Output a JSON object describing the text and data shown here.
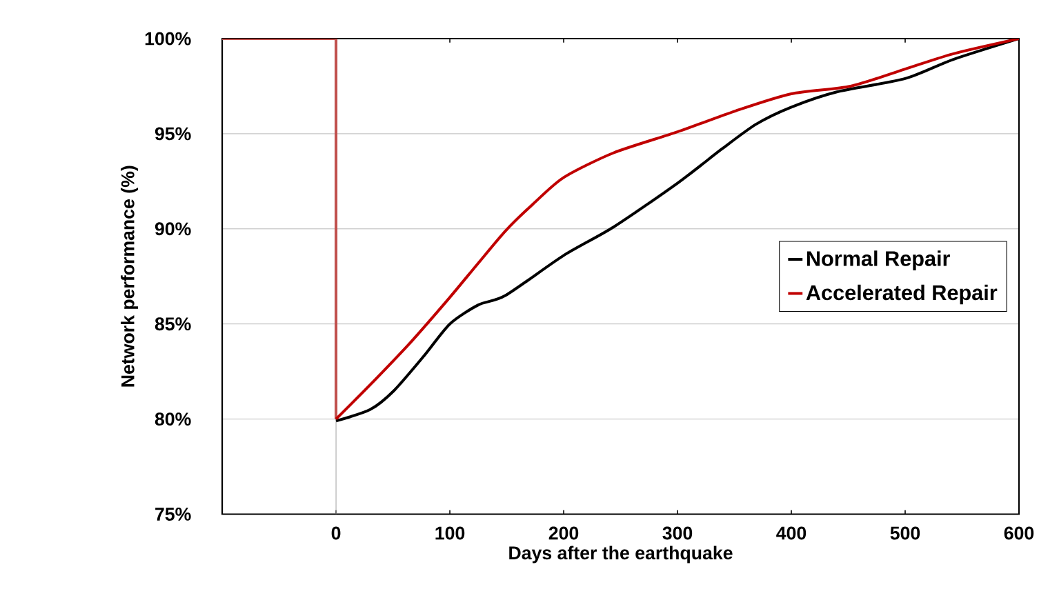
{
  "chart_data": {
    "type": "line",
    "xlabel": "Days after the earthquake",
    "ylabel": "Network performance (%)",
    "xlim": [
      -100,
      600
    ],
    "xticks": [
      {
        "value": -100,
        "label": null
      },
      0,
      100,
      200,
      300,
      400,
      500,
      600
    ],
    "ylim": [
      75,
      100
    ],
    "yticks": [
      {
        "value": 75,
        "label": "75%"
      },
      {
        "value": 80,
        "label": "80%"
      },
      {
        "value": 85,
        "label": "85%"
      },
      {
        "value": 90,
        "label": "90%"
      },
      {
        "value": 95,
        "label": "95%"
      },
      {
        "value": 100,
        "label": "100%"
      }
    ],
    "grid": "y",
    "legend": "right",
    "marker": "none",
    "line_style": "solid",
    "ref_lines": [
      {
        "axis": "x",
        "value": 0,
        "color": "#a6a6a6"
      }
    ],
    "series": [
      {
        "type": "step",
        "color": "#c0504d",
        "x": [
          -100,
          0,
          0
        ],
        "values": [
          100,
          100,
          80
        ]
      },
      {
        "name": "Normal Repair",
        "color": "#000000",
        "x": [
          0,
          30,
          51,
          77,
          100,
          125,
          149,
          200,
          244,
          300,
          339,
          369,
          400,
          440,
          500,
          542,
          600
        ],
        "values": [
          79.9,
          80.5,
          81.5,
          83.3,
          85.0,
          86.0,
          86.5,
          88.6,
          90.1,
          92.4,
          94.2,
          95.5,
          96.4,
          97.2,
          97.9,
          98.9,
          100
        ]
      },
      {
        "name": "Accelerated Repair",
        "color": "#c00000",
        "x": [
          0,
          30,
          65,
          100,
          125,
          149,
          173,
          200,
          244,
          300,
          351,
          400,
          452,
          500,
          542,
          600
        ],
        "values": [
          80.0,
          81.8,
          84.0,
          86.4,
          88.2,
          89.9,
          91.3,
          92.7,
          94.0,
          95.1,
          96.2,
          97.1,
          97.5,
          98.4,
          99.2,
          100
        ]
      }
    ]
  }
}
